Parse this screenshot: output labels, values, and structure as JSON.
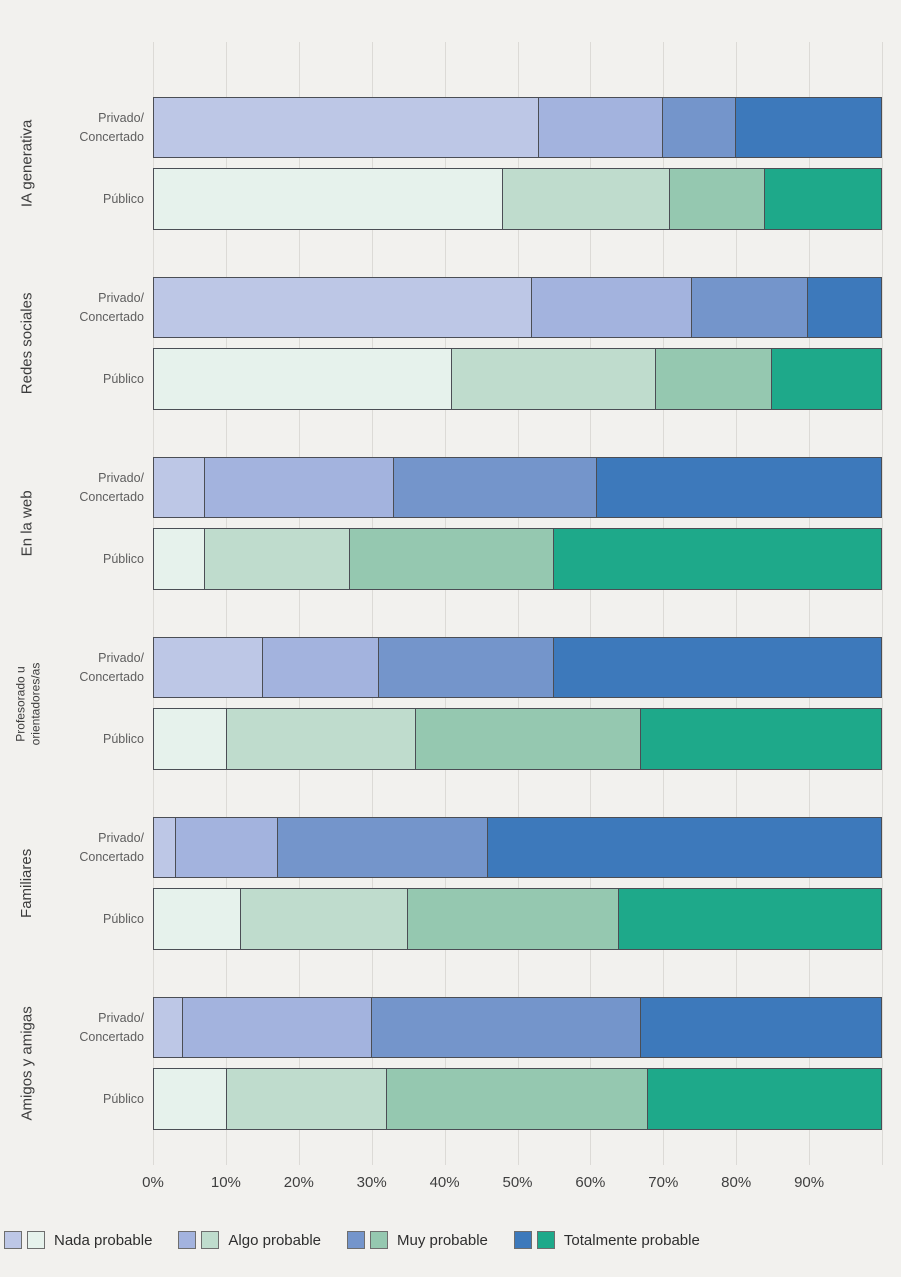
{
  "chart_data": {
    "type": "bar",
    "stacked": true,
    "orientation": "horizontal",
    "title": "",
    "categories": [
      "Nada probable",
      "Algo probable",
      "Muy probable",
      "Totalmente probable"
    ],
    "x_tick_labels": [
      "0%",
      "10%",
      "20%",
      "30%",
      "40%",
      "50%",
      "60%",
      "70%",
      "80%",
      "90%"
    ],
    "x_range": [
      0,
      100
    ],
    "grid": true,
    "legend_position": "bottom",
    "row_labels": {
      "privado": "Privado/\nConcertado",
      "publico": "Público"
    },
    "groups": [
      {
        "label": "IA generativa",
        "series": [
          {
            "name": "Privado/Concertado",
            "values": [
              53,
              17,
              10,
              20
            ]
          },
          {
            "name": "Público",
            "values": [
              48,
              23,
              13,
              16
            ]
          }
        ]
      },
      {
        "label": "Redes sociales",
        "series": [
          {
            "name": "Privado/Concertado",
            "values": [
              52,
              22,
              16,
              10
            ]
          },
          {
            "name": "Público",
            "values": [
              41,
              28,
              16,
              15
            ]
          }
        ]
      },
      {
        "label": "En la web",
        "series": [
          {
            "name": "Privado/Concertado",
            "values": [
              7,
              26,
              28,
              39
            ]
          },
          {
            "name": "Público",
            "values": [
              7,
              20,
              28,
              45
            ]
          }
        ]
      },
      {
        "label": "Profesorado u\norientadores/as",
        "series": [
          {
            "name": "Privado/Concertado",
            "values": [
              15,
              16,
              24,
              45
            ]
          },
          {
            "name": "Público",
            "values": [
              10,
              26,
              31,
              33
            ]
          }
        ]
      },
      {
        "label": "Familiares",
        "series": [
          {
            "name": "Privado/Concertado",
            "values": [
              3,
              14,
              29,
              54
            ]
          },
          {
            "name": "Público",
            "values": [
              12,
              23,
              29,
              36
            ]
          }
        ]
      },
      {
        "label": "Amigos y amigas",
        "series": [
          {
            "name": "Privado/Concertado",
            "values": [
              4,
              26,
              37,
              33
            ]
          },
          {
            "name": "Público",
            "values": [
              10,
              22,
              36,
              32
            ]
          }
        ]
      }
    ]
  },
  "colors": {
    "privado_palette": [
      "#bdc7e6",
      "#a3b3de",
      "#7495cb",
      "#3d79bb"
    ],
    "publico_palette": [
      "#e6f2ec",
      "#bfdccd",
      "#95c8b0",
      "#1ea98a"
    ],
    "background": "#f2f1ee",
    "gridline": "#dcdad6",
    "bar_border": "#4b4e55"
  }
}
